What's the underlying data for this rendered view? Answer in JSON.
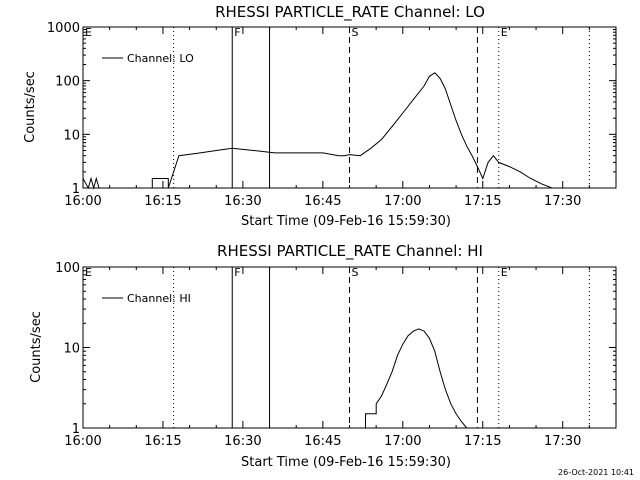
{
  "footer": {
    "timestamp": "26-Oct-2021 10:41"
  },
  "chart_data": [
    {
      "type": "line",
      "title": "RHESSI PARTICLE_RATE Channel: LO",
      "xlabel": "Start Time (09-Feb-16 15:59:30)",
      "ylabel": "Counts/sec",
      "legend": {
        "label": "Channel: LO",
        "position": "top-left"
      },
      "y_scale": "log",
      "xlim": [
        "16:00",
        "17:40"
      ],
      "ylim": [
        1,
        1000
      ],
      "x_ticks": [
        "16:00",
        "16:15",
        "16:30",
        "16:45",
        "17:00",
        "17:15",
        "17:30"
      ],
      "y_ticks": [
        "1",
        "10",
        "100",
        "1000"
      ],
      "markers": [
        {
          "time": "16:00",
          "style": "dotted",
          "label": "E"
        },
        {
          "time": "16:17",
          "style": "dotted",
          "label": ""
        },
        {
          "time": "16:28",
          "style": "solid",
          "label": "F"
        },
        {
          "time": "16:35",
          "style": "solid",
          "label": ""
        },
        {
          "time": "16:50",
          "style": "dashed",
          "label": "S"
        },
        {
          "time": "17:14",
          "style": "dashed",
          "label": ""
        },
        {
          "time": "17:18",
          "style": "dotted",
          "label": "E"
        },
        {
          "time": "17:35",
          "style": "dotted",
          "label": ""
        }
      ],
      "series": [
        {
          "name": "Channel: LO",
          "x": [
            "16:00",
            "16:01",
            "16:01.5",
            "16:02",
            "16:02.5",
            "16:03",
            "16:13",
            "16:13",
            "16:16",
            "16:16",
            "16:18",
            "16:22",
            "16:25",
            "16:28",
            "16:32",
            "16:36",
            "16:40",
            "16:45",
            "16:48",
            "16:49",
            "16:50",
            "16:52",
            "16:54",
            "16:56",
            "16:58",
            "17:00",
            "17:02",
            "17:04",
            "17:05",
            "17:06",
            "17:07",
            "17:08",
            "17:09",
            "17:10",
            "17:11",
            "17:12",
            "17:13",
            "17:14",
            "17:15",
            "17:16",
            "17:17",
            "17:18",
            "17:20",
            "17:22",
            "17:24",
            "17:26",
            "17:28"
          ],
          "y": [
            1.5,
            1,
            1.5,
            1,
            1.5,
            1,
            1,
            1.5,
            1.5,
            1,
            4,
            4.5,
            5,
            5.5,
            5,
            4.5,
            4.5,
            4.5,
            4,
            4,
            4.2,
            4,
            5.5,
            8,
            14,
            25,
            45,
            80,
            120,
            140,
            110,
            70,
            35,
            18,
            10,
            6,
            4,
            2.5,
            1.5,
            3,
            4,
            3,
            2.5,
            2,
            1.5,
            1.2,
            1
          ]
        }
      ]
    },
    {
      "type": "line",
      "title": "RHESSI PARTICLE_RATE Channel: HI",
      "xlabel": "Start Time (09-Feb-16 15:59:30)",
      "ylabel": "Counts/sec",
      "legend": {
        "label": "Channel: HI",
        "position": "top-left"
      },
      "y_scale": "log",
      "xlim": [
        "16:00",
        "17:40"
      ],
      "ylim": [
        1,
        100
      ],
      "x_ticks": [
        "16:00",
        "16:15",
        "16:30",
        "16:45",
        "17:00",
        "17:15",
        "17:30"
      ],
      "y_ticks": [
        "1",
        "10",
        "100"
      ],
      "markers": [
        {
          "time": "16:00",
          "style": "dotted",
          "label": "E"
        },
        {
          "time": "16:17",
          "style": "dotted",
          "label": ""
        },
        {
          "time": "16:28",
          "style": "solid",
          "label": "F"
        },
        {
          "time": "16:35",
          "style": "solid",
          "label": ""
        },
        {
          "time": "16:50",
          "style": "dashed",
          "label": "S"
        },
        {
          "time": "17:14",
          "style": "dashed",
          "label": ""
        },
        {
          "time": "17:18",
          "style": "dotted",
          "label": "E"
        },
        {
          "time": "17:35",
          "style": "dotted",
          "label": ""
        }
      ],
      "series": [
        {
          "name": "Channel: HI",
          "x": [
            "16:53",
            "16:53",
            "16:55",
            "16:55",
            "16:56",
            "16:57",
            "16:58",
            "16:59",
            "17:00",
            "17:01",
            "17:02",
            "17:03",
            "17:04",
            "17:05",
            "17:06",
            "17:07",
            "17:08",
            "17:09",
            "17:10",
            "17:11",
            "17:12"
          ],
          "y": [
            1,
            1.5,
            1.5,
            2,
            2.5,
            3.5,
            5,
            8,
            11,
            14,
            16,
            17,
            16,
            13,
            9,
            5,
            3,
            2,
            1.5,
            1.2,
            1
          ]
        }
      ]
    }
  ]
}
